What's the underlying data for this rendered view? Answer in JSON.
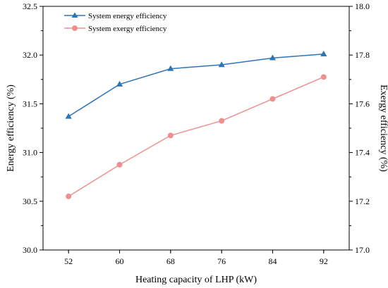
{
  "chart_data": {
    "type": "line",
    "x": [
      52,
      60,
      68,
      76,
      84,
      92
    ],
    "xticks": [
      "52",
      "60",
      "68",
      "76",
      "84",
      "92"
    ],
    "xlabel": "Heating capacity of LHP (kW)",
    "ylabel_left": "Energy efficiency (%)",
    "ylabel_right": "Exergy efficiency (%)",
    "ylim_left": [
      30.0,
      32.5
    ],
    "ylim_right": [
      17.0,
      18.0
    ],
    "yticks_left": [
      "30.0",
      "30.5",
      "31.0",
      "31.5",
      "32.0",
      "32.5"
    ],
    "yticks_right": [
      "17.0",
      "17.2",
      "17.4",
      "17.6",
      "17.8",
      "18.0"
    ],
    "grid": false,
    "legend_position": "top-left",
    "series": [
      {
        "name": "System energy efficiency",
        "axis": "left",
        "color": "#2e75b6",
        "marker": "triangle",
        "values": [
          31.37,
          31.7,
          31.86,
          31.9,
          31.97,
          32.01
        ]
      },
      {
        "name": "System exergy efficiency",
        "axis": "right",
        "color": "#f08f8f",
        "marker": "circle",
        "values": [
          17.22,
          17.35,
          17.47,
          17.53,
          17.62,
          17.71
        ]
      }
    ]
  }
}
